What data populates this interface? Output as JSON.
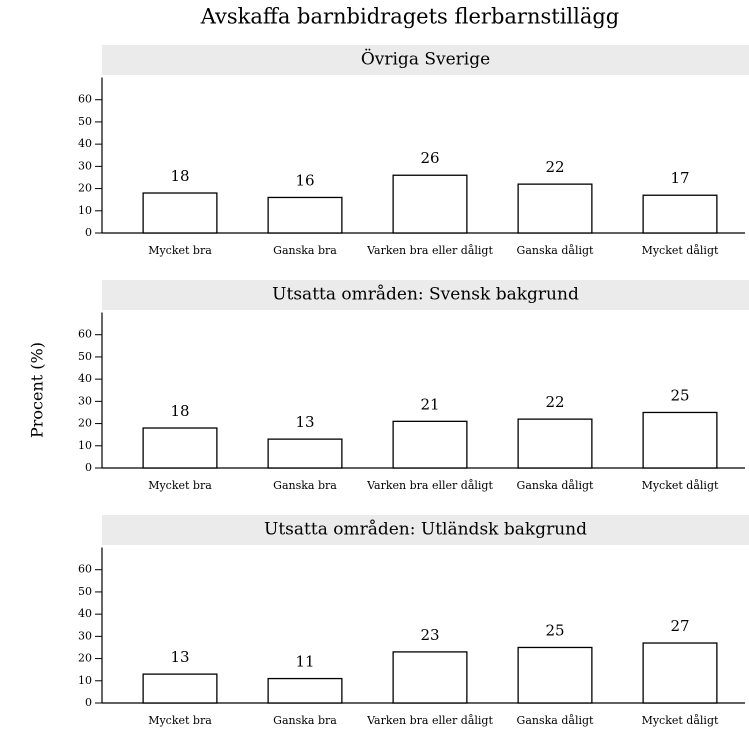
{
  "title": "Avskaffa barnbidragets flerbarnstillägg",
  "y_label": "Procent (%)",
  "chart_data": [
    {
      "type": "bar",
      "title": "Övriga Sverige",
      "categories": [
        "Mycket bra",
        "Ganska bra",
        "Varken bra eller dåligt",
        "Ganska dåligt",
        "Mycket dåligt"
      ],
      "values": [
        18,
        16,
        26,
        22,
        17
      ],
      "color": "#ffffff",
      "ylim": [
        0,
        70
      ],
      "yticks": [
        0,
        10,
        20,
        30,
        40,
        50,
        60
      ]
    },
    {
      "type": "bar",
      "title": "Utsatta områden: Svensk bakgrund",
      "categories": [
        "Mycket bra",
        "Ganska bra",
        "Varken bra eller dåligt",
        "Ganska dåligt",
        "Mycket dåligt"
      ],
      "values": [
        18,
        13,
        21,
        22,
        25
      ],
      "color": "#ffffff",
      "ylim": [
        0,
        70
      ],
      "yticks": [
        0,
        10,
        20,
        30,
        40,
        50,
        60
      ]
    },
    {
      "type": "bar",
      "title": "Utsatta områden: Utländsk bakgrund",
      "categories": [
        "Mycket bra",
        "Ganska bra",
        "Varken bra eller dåligt",
        "Ganska dåligt",
        "Mycket dåligt"
      ],
      "values": [
        13,
        11,
        23,
        25,
        27
      ],
      "color": "#ffffff",
      "ylim": [
        0,
        70
      ],
      "yticks": [
        0,
        10,
        20,
        30,
        40,
        50,
        60
      ]
    }
  ]
}
